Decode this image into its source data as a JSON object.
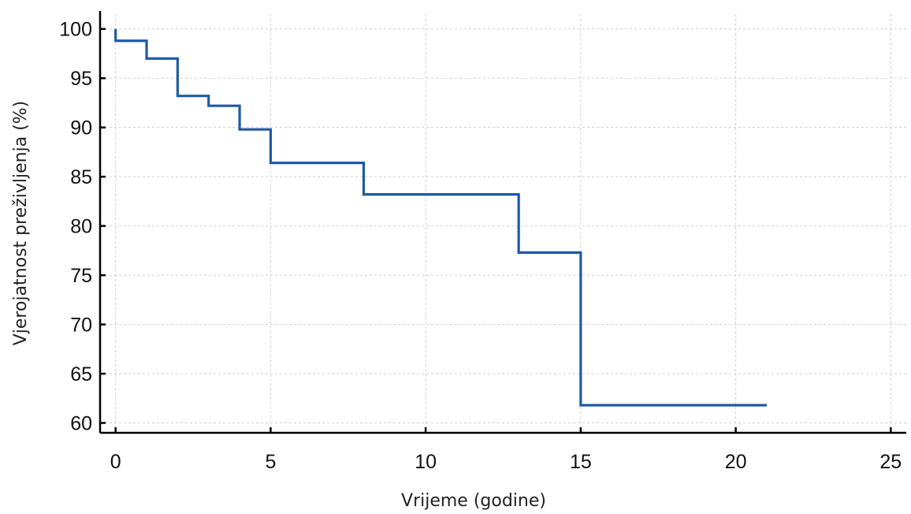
{
  "chart_data": {
    "type": "line",
    "line_style": "step",
    "xlabel": "Vrijeme (godine)",
    "ylabel": "Vjerojatnost preživljenja (%)",
    "xlim": [
      -0.5,
      25.5
    ],
    "ylim": [
      59,
      101.5
    ],
    "x_ticks": [
      0,
      5,
      10,
      15,
      20,
      25
    ],
    "y_ticks": [
      60,
      65,
      70,
      75,
      80,
      85,
      90,
      95,
      100
    ],
    "grid": true,
    "series": [
      {
        "color": "#1f5aa6",
        "x": [
          0,
          1,
          2,
          3,
          4,
          5,
          8,
          13,
          15,
          21
        ],
        "values": [
          98.8,
          97.0,
          93.2,
          92.2,
          89.8,
          86.4,
          83.2,
          77.3,
          61.8,
          61.8
        ]
      }
    ],
    "start_value": 100
  }
}
